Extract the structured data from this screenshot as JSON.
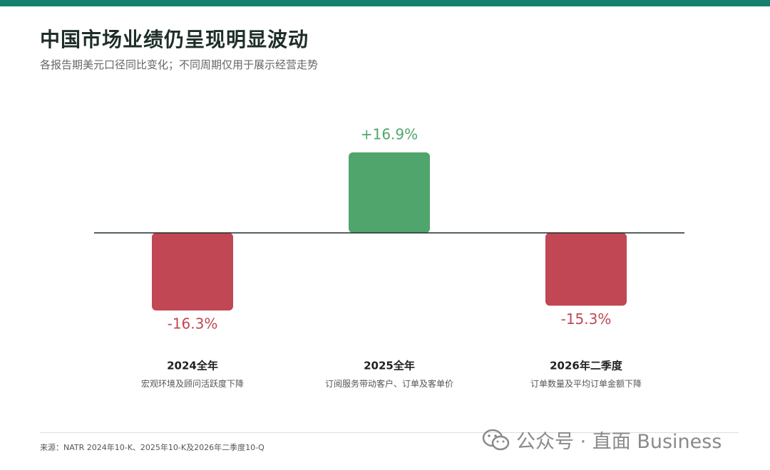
{
  "chart_data": {
    "type": "bar",
    "title": "中国市场业绩仍呈现明显波动",
    "subtitle": "各报告期美元口径同比变化；不同周期仅用于展示经营走势",
    "categories": [
      "2024全年",
      "2025全年",
      "2026年二季度"
    ],
    "descriptions": [
      "宏观环境及顾问活跃度下降",
      "订阅服务带动客户、订单及客单价",
      "订单数量及平均订单金额下降"
    ],
    "values": [
      -16.3,
      16.9,
      -15.3
    ],
    "value_labels": [
      "-16.3%",
      "+16.9%",
      "-15.3%"
    ],
    "colors": {
      "positive": "#50a56c",
      "negative": "#c04753"
    },
    "source": "来源：NATR 2024年10-K、2025年10-K及2026年二季度10-Q",
    "watermark": "公众号 · 直面 Business"
  }
}
